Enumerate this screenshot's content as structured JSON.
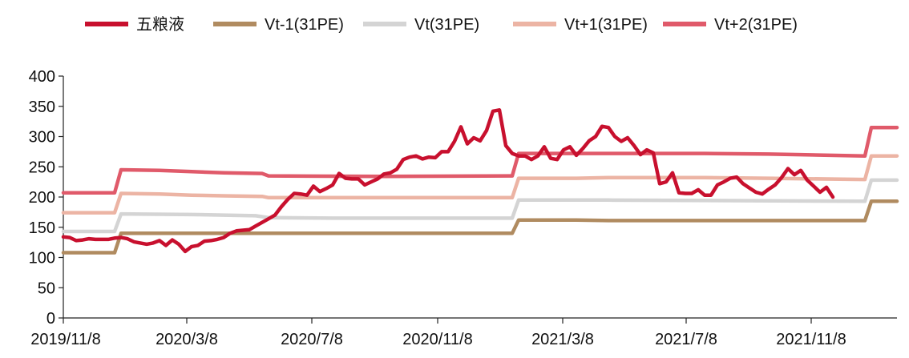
{
  "chart_data": {
    "type": "line",
    "title": "",
    "xlabel": "",
    "ylabel": "",
    "ylim": [
      0,
      400
    ],
    "yticks": [
      "0",
      "50",
      "100",
      "150",
      "200",
      "250",
      "300",
      "350",
      "400"
    ],
    "xtick_labels": [
      "2019/11/8",
      "2020/3/8",
      "2020/7/8",
      "2020/11/8",
      "2021/3/8",
      "2021/7/8",
      "2021/11/8"
    ],
    "x_count": 140,
    "legend": "top",
    "series": [
      {
        "name": "五粮液",
        "color": "#c8102e",
        "points": [
          [
            0,
            134
          ],
          [
            2,
            133
          ],
          [
            4,
            128
          ],
          [
            6,
            129
          ],
          [
            8,
            131
          ],
          [
            10,
            130
          ],
          [
            12,
            130
          ],
          [
            14,
            130
          ],
          [
            16,
            132
          ],
          [
            18,
            133
          ],
          [
            20,
            131
          ],
          [
            22,
            126
          ],
          [
            24,
            124
          ],
          [
            26,
            122
          ],
          [
            28,
            124
          ],
          [
            30,
            128
          ],
          [
            32,
            120
          ],
          [
            34,
            129
          ],
          [
            36,
            122
          ],
          [
            38,
            110
          ],
          [
            40,
            118
          ],
          [
            42,
            120
          ],
          [
            44,
            127
          ],
          [
            46,
            128
          ],
          [
            48,
            130
          ],
          [
            50,
            133
          ],
          [
            52,
            140
          ],
          [
            54,
            144
          ],
          [
            56,
            145
          ],
          [
            58,
            146
          ],
          [
            60,
            152
          ],
          [
            62,
            158
          ],
          [
            64,
            164
          ],
          [
            66,
            170
          ],
          [
            68,
            184
          ],
          [
            70,
            196
          ],
          [
            72,
            206
          ],
          [
            74,
            205
          ],
          [
            76,
            203
          ],
          [
            78,
            218
          ],
          [
            80,
            209
          ],
          [
            82,
            214
          ],
          [
            84,
            220
          ],
          [
            86,
            239
          ],
          [
            88,
            231
          ],
          [
            90,
            230
          ],
          [
            92,
            230
          ],
          [
            94,
            220
          ],
          [
            96,
            225
          ],
          [
            98,
            230
          ],
          [
            100,
            238
          ],
          [
            102,
            240
          ],
          [
            104,
            246
          ],
          [
            106,
            262
          ],
          [
            108,
            266
          ],
          [
            110,
            268
          ],
          [
            112,
            263
          ],
          [
            114,
            266
          ],
          [
            116,
            265
          ],
          [
            118,
            275
          ],
          [
            120,
            275
          ],
          [
            122,
            292
          ],
          [
            124,
            316
          ],
          [
            126,
            288
          ],
          [
            128,
            298
          ],
          [
            130,
            293
          ],
          [
            132,
            310
          ],
          [
            134,
            342
          ],
          [
            136,
            344
          ],
          [
            138,
            285
          ],
          [
            140,
            272
          ],
          [
            142,
            268
          ],
          [
            144,
            268
          ],
          [
            146,
            262
          ],
          [
            148,
            268
          ],
          [
            150,
            283
          ],
          [
            152,
            264
          ],
          [
            154,
            262
          ],
          [
            156,
            278
          ],
          [
            158,
            283
          ],
          [
            160,
            269
          ],
          [
            162,
            280
          ],
          [
            164,
            293
          ],
          [
            166,
            300
          ],
          [
            168,
            317
          ],
          [
            170,
            315
          ],
          [
            172,
            300
          ],
          [
            174,
            292
          ],
          [
            176,
            298
          ],
          [
            178,
            285
          ],
          [
            180,
            270
          ],
          [
            182,
            278
          ],
          [
            184,
            273
          ],
          [
            186,
            222
          ],
          [
            188,
            225
          ],
          [
            190,
            240
          ],
          [
            192,
            207
          ],
          [
            194,
            206
          ],
          [
            196,
            206
          ],
          [
            198,
            212
          ],
          [
            200,
            203
          ],
          [
            202,
            203
          ],
          [
            204,
            220
          ],
          [
            206,
            225
          ],
          [
            208,
            231
          ],
          [
            210,
            233
          ],
          [
            212,
            222
          ],
          [
            214,
            215
          ],
          [
            216,
            208
          ],
          [
            218,
            205
          ],
          [
            220,
            213
          ],
          [
            222,
            220
          ],
          [
            224,
            232
          ],
          [
            226,
            247
          ],
          [
            228,
            237
          ],
          [
            230,
            244
          ],
          [
            232,
            228
          ],
          [
            234,
            218
          ],
          [
            236,
            208
          ],
          [
            238,
            216
          ],
          [
            240,
            200
          ]
        ]
      },
      {
        "name": "Vt-1(31PE)",
        "color": "#b08b60",
        "points": [
          [
            0,
            108
          ],
          [
            16,
            108
          ],
          [
            18,
            140
          ],
          [
            140,
            140
          ],
          [
            142,
            162
          ],
          [
            160,
            162
          ],
          [
            170,
            161
          ],
          [
            250,
            161
          ],
          [
            252,
            193
          ],
          [
            260,
            193
          ]
        ]
      },
      {
        "name": "Vt(31PE)",
        "color": "#d4d4d4",
        "points": [
          [
            0,
            143
          ],
          [
            16,
            143
          ],
          [
            18,
            172
          ],
          [
            40,
            171
          ],
          [
            50,
            170
          ],
          [
            60,
            169
          ],
          [
            64,
            166
          ],
          [
            84,
            165
          ],
          [
            140,
            165
          ],
          [
            142,
            195
          ],
          [
            160,
            195
          ],
          [
            170,
            195
          ],
          [
            250,
            193
          ],
          [
            252,
            228
          ],
          [
            260,
            228
          ]
        ]
      },
      {
        "name": "Vt+1(31PE)",
        "color": "#ecb4a4",
        "points": [
          [
            0,
            174
          ],
          [
            16,
            174
          ],
          [
            18,
            206
          ],
          [
            30,
            205
          ],
          [
            40,
            203
          ],
          [
            50,
            202
          ],
          [
            62,
            201
          ],
          [
            64,
            199
          ],
          [
            140,
            199
          ],
          [
            142,
            231
          ],
          [
            160,
            231
          ],
          [
            170,
            232
          ],
          [
            200,
            232
          ],
          [
            220,
            231
          ],
          [
            250,
            229
          ],
          [
            252,
            268
          ],
          [
            260,
            268
          ]
        ]
      },
      {
        "name": "Vt+2(31PE)",
        "color": "#e05a6a",
        "points": [
          [
            0,
            207
          ],
          [
            16,
            207
          ],
          [
            18,
            245
          ],
          [
            30,
            244
          ],
          [
            40,
            242
          ],
          [
            50,
            240
          ],
          [
            62,
            239
          ],
          [
            64,
            235
          ],
          [
            100,
            234
          ],
          [
            140,
            235
          ],
          [
            142,
            272
          ],
          [
            160,
            272
          ],
          [
            200,
            272
          ],
          [
            220,
            271
          ],
          [
            230,
            270
          ],
          [
            250,
            268
          ],
          [
            252,
            315
          ],
          [
            260,
            315
          ]
        ]
      }
    ]
  }
}
